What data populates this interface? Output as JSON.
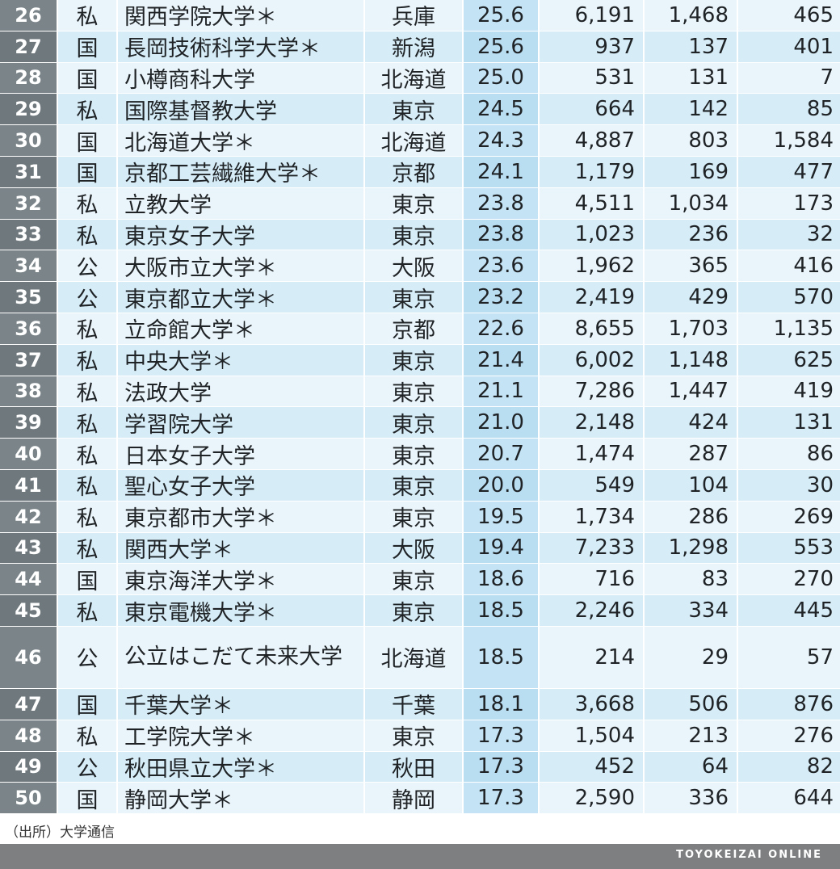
{
  "rows": [
    {
      "rank": "26",
      "type": "私",
      "name": "関西学院大学＊",
      "pref": "兵庫",
      "score": "25.6",
      "v1": "6,191",
      "v2": "1,468",
      "v3": "465"
    },
    {
      "rank": "27",
      "type": "国",
      "name": "長岡技術科学大学＊",
      "pref": "新潟",
      "score": "25.6",
      "v1": "937",
      "v2": "137",
      "v3": "401"
    },
    {
      "rank": "28",
      "type": "国",
      "name": "小樽商科大学",
      "pref": "北海道",
      "score": "25.0",
      "v1": "531",
      "v2": "131",
      "v3": "7"
    },
    {
      "rank": "29",
      "type": "私",
      "name": "国際基督教大学",
      "pref": "東京",
      "score": "24.5",
      "v1": "664",
      "v2": "142",
      "v3": "85"
    },
    {
      "rank": "30",
      "type": "国",
      "name": "北海道大学＊",
      "pref": "北海道",
      "score": "24.3",
      "v1": "4,887",
      "v2": "803",
      "v3": "1,584"
    },
    {
      "rank": "31",
      "type": "国",
      "name": "京都工芸繊維大学＊",
      "pref": "京都",
      "score": "24.1",
      "v1": "1,179",
      "v2": "169",
      "v3": "477"
    },
    {
      "rank": "32",
      "type": "私",
      "name": "立教大学",
      "pref": "東京",
      "score": "23.8",
      "v1": "4,511",
      "v2": "1,034",
      "v3": "173"
    },
    {
      "rank": "33",
      "type": "私",
      "name": "東京女子大学",
      "pref": "東京",
      "score": "23.8",
      "v1": "1,023",
      "v2": "236",
      "v3": "32"
    },
    {
      "rank": "34",
      "type": "公",
      "name": "大阪市立大学＊",
      "pref": "大阪",
      "score": "23.6",
      "v1": "1,962",
      "v2": "365",
      "v3": "416"
    },
    {
      "rank": "35",
      "type": "公",
      "name": "東京都立大学＊",
      "pref": "東京",
      "score": "23.2",
      "v1": "2,419",
      "v2": "429",
      "v3": "570"
    },
    {
      "rank": "36",
      "type": "私",
      "name": "立命館大学＊",
      "pref": "京都",
      "score": "22.6",
      "v1": "8,655",
      "v2": "1,703",
      "v3": "1,135"
    },
    {
      "rank": "37",
      "type": "私",
      "name": "中央大学＊",
      "pref": "東京",
      "score": "21.4",
      "v1": "6,002",
      "v2": "1,148",
      "v3": "625"
    },
    {
      "rank": "38",
      "type": "私",
      "name": "法政大学",
      "pref": "東京",
      "score": "21.1",
      "v1": "7,286",
      "v2": "1,447",
      "v3": "419"
    },
    {
      "rank": "39",
      "type": "私",
      "name": "学習院大学",
      "pref": "東京",
      "score": "21.0",
      "v1": "2,148",
      "v2": "424",
      "v3": "131"
    },
    {
      "rank": "40",
      "type": "私",
      "name": "日本女子大学",
      "pref": "東京",
      "score": "20.7",
      "v1": "1,474",
      "v2": "287",
      "v3": "86"
    },
    {
      "rank": "41",
      "type": "私",
      "name": "聖心女子大学",
      "pref": "東京",
      "score": "20.0",
      "v1": "549",
      "v2": "104",
      "v3": "30"
    },
    {
      "rank": "42",
      "type": "私",
      "name": "東京都市大学＊",
      "pref": "東京",
      "score": "19.5",
      "v1": "1,734",
      "v2": "286",
      "v3": "269"
    },
    {
      "rank": "43",
      "type": "私",
      "name": "関西大学＊",
      "pref": "大阪",
      "score": "19.4",
      "v1": "7,233",
      "v2": "1,298",
      "v3": "553"
    },
    {
      "rank": "44",
      "type": "国",
      "name": "東京海洋大学＊",
      "pref": "東京",
      "score": "18.6",
      "v1": "716",
      "v2": "83",
      "v3": "270"
    },
    {
      "rank": "45",
      "type": "私",
      "name": "東京電機大学＊",
      "pref": "東京",
      "score": "18.5",
      "v1": "2,246",
      "v2": "334",
      "v3": "445"
    },
    {
      "rank": "46",
      "type": "公",
      "name": "公立はこだて未来大学",
      "pref": "北海道",
      "score": "18.5",
      "v1": "214",
      "v2": "29",
      "v3": "57"
    },
    {
      "rank": "47",
      "type": "国",
      "name": "千葉大学＊",
      "pref": "千葉",
      "score": "18.1",
      "v1": "3,668",
      "v2": "506",
      "v3": "876"
    },
    {
      "rank": "48",
      "type": "私",
      "name": "工学院大学＊",
      "pref": "東京",
      "score": "17.3",
      "v1": "1,504",
      "v2": "213",
      "v3": "276"
    },
    {
      "rank": "49",
      "type": "公",
      "name": "秋田県立大学＊",
      "pref": "秋田",
      "score": "17.3",
      "v1": "452",
      "v2": "64",
      "v3": "82"
    },
    {
      "rank": "50",
      "type": "国",
      "name": "静岡大学＊",
      "pref": "静岡",
      "score": "17.3",
      "v1": "2,590",
      "v2": "336",
      "v3": "644"
    }
  ],
  "source": "（出所）大学通信",
  "brand": "TOYOKEIZAI ONLINE"
}
